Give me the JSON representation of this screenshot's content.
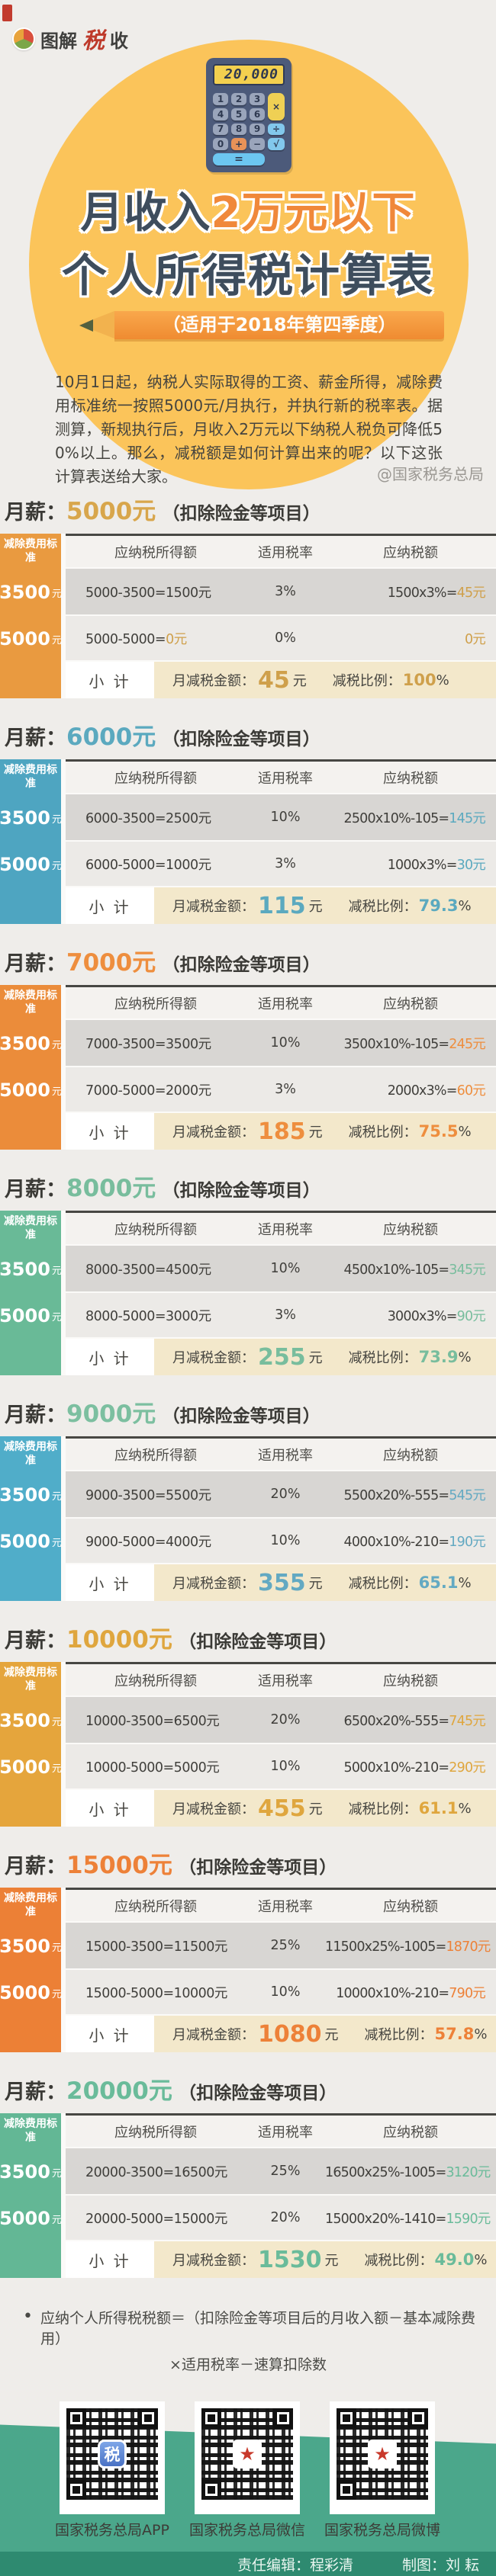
{
  "logo": {
    "part1": "图解",
    "part2": "税",
    "part3": "收"
  },
  "calculator": {
    "display": "20,000",
    "digits": [
      "1",
      "2",
      "3",
      "4",
      "5",
      "6",
      "7",
      "8",
      "9"
    ],
    "zero": "0",
    "plus": "+",
    "minus": "−",
    "times": "×",
    "divide": "÷",
    "sqrt": "√",
    "equals": "="
  },
  "hero": {
    "title_line1_dark": "月收入",
    "title_line1_accent": "2万元以下",
    "title_line2": "个人所得税计算表",
    "banner": "（适用于2018年第四季度）",
    "intro": "10月1日起，纳税人实际取得的工资、薪金所得，减除费用标准统一按照5000元/月执行，并执行新的税率表。据测算，新规执行后，月收入2万元以下纳税人税负可降低50%以上。那么，减税额是如何计算出来的呢？以下这张计算表送给大家。",
    "credit": "@国家税务总局"
  },
  "shared": {
    "salary_label": "月薪：",
    "salary_suffix": "（扣除险金等项目）",
    "col_std": "减除费用标准",
    "std1": "3500",
    "std2": "5000",
    "std_unit": "元",
    "h1": "应纳税所得额",
    "h2": "适用税率",
    "h3": "应纳税额",
    "subtotal": "小 计",
    "amount_label": "月减税金额：",
    "amount_unit": "元",
    "ratio_label": "减税比例：",
    "ratio_unit": "%"
  },
  "tables": [
    {
      "amount": "5000元",
      "css": "--ttl:#D8A64C;--col:#E99A40;--val:#CFA04B",
      "r1": {
        "c1": "5000-3500=1500元",
        "c1h": "",
        "c2": "3%",
        "c3": "1500x3%=",
        "c3h": "45元"
      },
      "r2": {
        "c1": "5000-5000=",
        "c1h": "0元",
        "c2": "0%",
        "c3": "",
        "c3h": "0元"
      },
      "sub": {
        "amount": "45",
        "ratio": "100"
      }
    },
    {
      "amount": "6000元",
      "css": "--ttl:#5BA9BF;--col:#4EA5C1;--val:#5BA9BF",
      "r1": {
        "c1": "6000-3500=2500元",
        "c1h": "",
        "c2": "10%",
        "c3": "2500x10%-105=",
        "c3h": "145元"
      },
      "r2": {
        "c1": "6000-5000=1000元",
        "c1h": "",
        "c2": "3%",
        "c3": "1000x3%=",
        "c3h": "30元"
      },
      "sub": {
        "amount": "115",
        "ratio": "79.3"
      }
    },
    {
      "amount": "7000元",
      "css": "--ttl:#EE8E3E;--col:#EB8C3A;--val:#EE8E3E",
      "r1": {
        "c1": "7000-3500=3500元",
        "c1h": "",
        "c2": "10%",
        "c3": "3500x10%-105=",
        "c3h": "245元"
      },
      "r2": {
        "c1": "7000-5000=2000元",
        "c1h": "",
        "c2": "3%",
        "c3": "2000x3%=",
        "c3h": "60元"
      },
      "sub": {
        "amount": "185",
        "ratio": "75.5"
      }
    },
    {
      "amount": "8000元",
      "css": "--ttl:#78BD9D;--col:#69BA97;--val:#78BD9D",
      "r1": {
        "c1": "8000-3500=4500元",
        "c1h": "",
        "c2": "10%",
        "c3": "4500x10%-105=",
        "c3h": "345元"
      },
      "r2": {
        "c1": "8000-5000=3000元",
        "c1h": "",
        "c2": "3%",
        "c3": "3000x3%=",
        "c3h": "90元"
      },
      "sub": {
        "amount": "255",
        "ratio": "73.9"
      }
    },
    {
      "amount": "9000元",
      "css": "--ttl:#7CBFA0;--col:#50ADC9;--val:#63A9C2",
      "r1": {
        "c1": "9000-3500=5500元",
        "c1h": "",
        "c2": "20%",
        "c3": "5500x20%-555=",
        "c3h": "545元"
      },
      "r2": {
        "c1": "9000-5000=4000元",
        "c1h": "",
        "c2": "10%",
        "c3": "4000x10%-210=",
        "c3h": "190元"
      },
      "sub": {
        "amount": "355",
        "ratio": "65.1"
      }
    },
    {
      "amount": "10000元",
      "css": "--ttl:#DFA63E;--col:#E5A53C;--val:#DFA63E",
      "r1": {
        "c1": "10000-3500=6500元",
        "c1h": "",
        "c2": "20%",
        "c3": "6500x20%-555=",
        "c3h": "745元"
      },
      "r2": {
        "c1": "10000-5000=5000元",
        "c1h": "",
        "c2": "10%",
        "c3": "5000x10%-210=",
        "c3h": "290元"
      },
      "sub": {
        "amount": "455",
        "ratio": "61.1"
      }
    },
    {
      "amount": "15000元",
      "css": "--ttl:#ED8138;--col:#EC8036;--val:#ED8138",
      "r1": {
        "c1": "15000-3500=11500元",
        "c1h": "",
        "c2": "25%",
        "c3": "11500x25%-1005=",
        "c3h": "1870元"
      },
      "r2": {
        "c1": "15000-5000=10000元",
        "c1h": "",
        "c2": "10%",
        "c3": "10000x10%-210=",
        "c3h": "790元"
      },
      "sub": {
        "amount": "1080",
        "ratio": "57.8"
      }
    },
    {
      "amount": "20000元",
      "css": "--ttl:#6ABB9A;--col:#63B795;--val:#6ABB9A",
      "r1": {
        "c1": "20000-3500=16500元",
        "c1h": "",
        "c2": "25%",
        "c3": "16500x25%-1005=",
        "c3h": "3120元"
      },
      "r2": {
        "c1": "20000-5000=15000元",
        "c1h": "",
        "c2": "20%",
        "c3": "15000x20%-1410=",
        "c3h": "1590元"
      },
      "sub": {
        "amount": "1530",
        "ratio": "49.0"
      }
    }
  ],
  "notes": {
    "bullet": "•",
    "line1": "应纳个人所得税税额＝（扣除险金等项目后的月收入额－基本减除费用）",
    "line2": "×适用税率－速算扣除数"
  },
  "qr": {
    "items": [
      {
        "label": "国家税务总局APP",
        "badge": "税"
      },
      {
        "label": "国家税务总局微信",
        "badge": "★"
      },
      {
        "label": "国家税务总局微博",
        "badge": "★"
      }
    ]
  },
  "footer": {
    "editor": "责任编辑：程彩清",
    "artist": "制图：刘 耘"
  }
}
